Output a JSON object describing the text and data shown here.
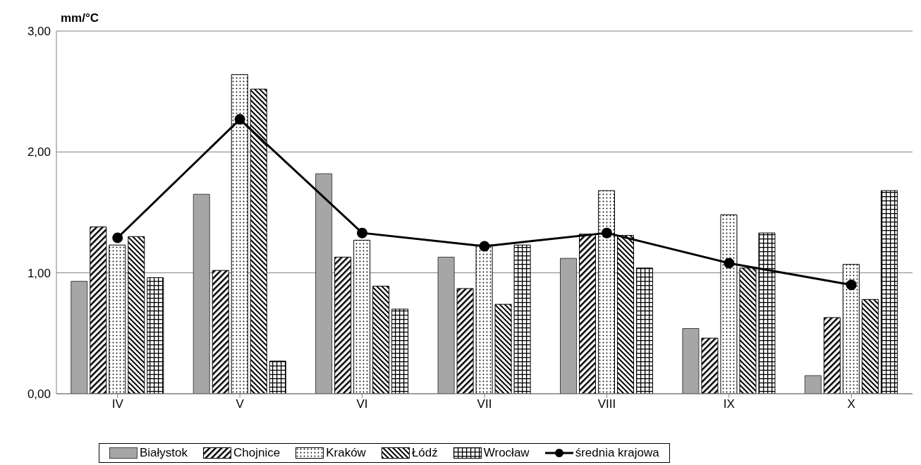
{
  "chart_data": {
    "type": "bar",
    "ylabel": "mm/°C",
    "categories": [
      "IV",
      "V",
      "VI",
      "VII",
      "VIII",
      "IX",
      "X"
    ],
    "series": [
      {
        "name": "Białystok",
        "color": "#a6a6a6",
        "values": [
          0.93,
          1.65,
          1.82,
          1.13,
          1.12,
          0.54,
          0.15
        ]
      },
      {
        "name": "Chojnice",
        "color": "#000000",
        "values": [
          1.38,
          1.02,
          1.13,
          0.87,
          1.32,
          0.46,
          0.63
        ]
      },
      {
        "name": "Kraków",
        "color": "#000000",
        "values": [
          1.23,
          2.64,
          1.27,
          1.23,
          1.68,
          1.48,
          1.07
        ]
      },
      {
        "name": "Łódź",
        "color": "#000000",
        "values": [
          1.3,
          2.52,
          0.89,
          0.74,
          1.31,
          1.04,
          0.78
        ]
      },
      {
        "name": "Wrocław",
        "color": "#000000",
        "values": [
          0.96,
          0.27,
          0.7,
          1.23,
          1.04,
          1.33,
          1.68
        ]
      },
      {
        "name": "średnia krajowa",
        "type": "line",
        "color": "#000000",
        "marker": "circle",
        "values": [
          1.29,
          2.27,
          1.33,
          1.22,
          1.33,
          1.08,
          0.9
        ]
      }
    ],
    "ylim": [
      0,
      3
    ],
    "yticks": [
      {
        "value": 0,
        "label": "0,00"
      },
      {
        "value": 1,
        "label": "1,00"
      },
      {
        "value": 2,
        "label": "2,00"
      },
      {
        "value": 3,
        "label": "3,00"
      }
    ],
    "grid": "y",
    "legend": "bottom"
  }
}
